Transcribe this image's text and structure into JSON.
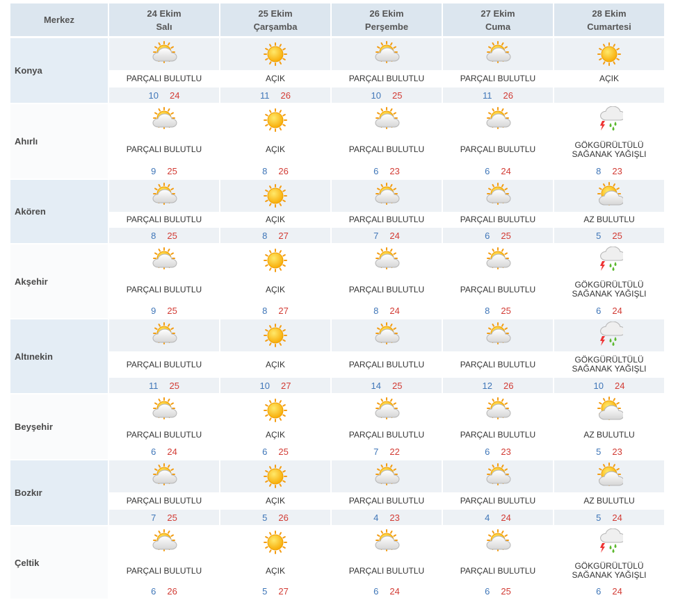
{
  "header": {
    "title": "Merkez",
    "days": [
      {
        "date": "24 Ekim",
        "day": "Salı"
      },
      {
        "date": "25 Ekim",
        "day": "Çarşamba"
      },
      {
        "date": "26 Ekim",
        "day": "Perşembe"
      },
      {
        "date": "27 Ekim",
        "day": "Cuma"
      },
      {
        "date": "28 Ekim",
        "day": "Cumartesi"
      }
    ]
  },
  "rows": [
    {
      "name": "Konya",
      "cells": [
        {
          "condition": "PARÇALI BULUTLU",
          "low": 10,
          "high": 24
        },
        {
          "condition": "AÇIK",
          "low": 11,
          "high": 26
        },
        {
          "condition": "PARÇALI BULUTLU",
          "low": 10,
          "high": 25
        },
        {
          "condition": "PARÇALI BULUTLU",
          "low": 11,
          "high": 26
        },
        {
          "condition": "AÇIK"
        }
      ]
    },
    {
      "name": "Ahırlı",
      "cells": [
        {
          "condition": "PARÇALI BULUTLU",
          "low": 9,
          "high": 25
        },
        {
          "condition": "AÇIK",
          "low": 8,
          "high": 26
        },
        {
          "condition": "PARÇALI BULUTLU",
          "low": 6,
          "high": 23
        },
        {
          "condition": "PARÇALI BULUTLU",
          "low": 6,
          "high": 24
        },
        {
          "condition": "GÖKGÜRÜLTÜLÜ SAĞANAK YAĞIŞLI",
          "low": 8,
          "high": 23
        }
      ]
    },
    {
      "name": "Akören",
      "cells": [
        {
          "condition": "PARÇALI BULUTLU",
          "low": 8,
          "high": 25
        },
        {
          "condition": "AÇIK",
          "low": 8,
          "high": 27
        },
        {
          "condition": "PARÇALI BULUTLU",
          "low": 7,
          "high": 24
        },
        {
          "condition": "PARÇALI BULUTLU",
          "low": 6,
          "high": 25
        },
        {
          "condition": "AZ BULUTLU",
          "low": 5,
          "high": 25
        }
      ]
    },
    {
      "name": "Akşehir",
      "cells": [
        {
          "condition": "PARÇALI BULUTLU",
          "low": 9,
          "high": 25
        },
        {
          "condition": "AÇIK",
          "low": 8,
          "high": 27
        },
        {
          "condition": "PARÇALI BULUTLU",
          "low": 8,
          "high": 24
        },
        {
          "condition": "PARÇALI BULUTLU",
          "low": 8,
          "high": 25
        },
        {
          "condition": "GÖKGÜRÜLTÜLÜ SAĞANAK YAĞIŞLI",
          "low": 6,
          "high": 24
        }
      ]
    },
    {
      "name": "Altınekin",
      "cells": [
        {
          "condition": "PARÇALI BULUTLU",
          "low": 11,
          "high": 25
        },
        {
          "condition": "AÇIK",
          "low": 10,
          "high": 27
        },
        {
          "condition": "PARÇALI BULUTLU",
          "low": 14,
          "high": 25
        },
        {
          "condition": "PARÇALI BULUTLU",
          "low": 12,
          "high": 26
        },
        {
          "condition": "GÖKGÜRÜLTÜLÜ SAĞANAK YAĞIŞLI",
          "low": 10,
          "high": 24
        }
      ]
    },
    {
      "name": "Beyşehir",
      "cells": [
        {
          "condition": "PARÇALI BULUTLU",
          "low": 6,
          "high": 24
        },
        {
          "condition": "AÇIK",
          "low": 6,
          "high": 25
        },
        {
          "condition": "PARÇALI BULUTLU",
          "low": 7,
          "high": 22
        },
        {
          "condition": "PARÇALI BULUTLU",
          "low": 6,
          "high": 23
        },
        {
          "condition": "AZ BULUTLU",
          "low": 5,
          "high": 23
        }
      ]
    },
    {
      "name": "Bozkır",
      "cells": [
        {
          "condition": "PARÇALI BULUTLU",
          "low": 7,
          "high": 25
        },
        {
          "condition": "AÇIK",
          "low": 5,
          "high": 26
        },
        {
          "condition": "PARÇALI BULUTLU",
          "low": 4,
          "high": 23
        },
        {
          "condition": "PARÇALI BULUTLU",
          "low": 4,
          "high": 24
        },
        {
          "condition": "AZ BULUTLU",
          "low": 5,
          "high": 24
        }
      ]
    },
    {
      "name": "Çeltik",
      "cells": [
        {
          "condition": "PARÇALI BULUTLU",
          "low": 6,
          "high": 26
        },
        {
          "condition": "AÇIK",
          "low": 5,
          "high": 27
        },
        {
          "condition": "PARÇALI BULUTLU",
          "low": 6,
          "high": 24
        },
        {
          "condition": "PARÇALI BULUTLU",
          "low": 6,
          "high": 25
        },
        {
          "condition": "GÖKGÜRÜLTÜLÜ SAĞANAK YAĞIŞLI",
          "low": 6,
          "high": 24
        }
      ]
    }
  ]
}
